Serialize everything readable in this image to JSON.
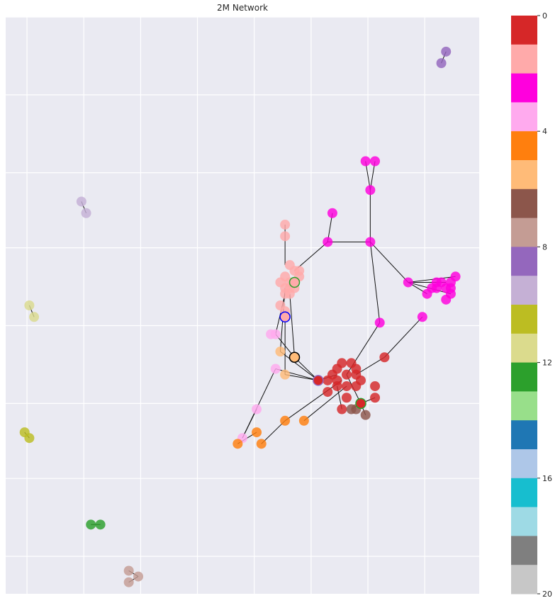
{
  "chart_data": {
    "type": "scatter",
    "title": "2M Network",
    "grid": true,
    "colorbar": {
      "position": "right",
      "ticks": [
        "0",
        "4",
        "8",
        "12",
        "16",
        "20"
      ],
      "tick_values": [
        0,
        4,
        8,
        12,
        16,
        20
      ],
      "range": [
        0,
        20
      ],
      "colors": [
        "#d62728",
        "#ffaaaa",
        "#ff00dd",
        "#ffaaee",
        "#ff7f0e",
        "#ffbb78",
        "#8c564b",
        "#c49c94",
        "#9467bd",
        "#c5b0d5",
        "#bcbd22",
        "#dbdb8d",
        "#2ca02c",
        "#98df8a",
        "#1f77b4",
        "#aec7e8",
        "#17becf",
        "#9edae5",
        "#7f7f7f",
        "#c7c7c7"
      ]
    },
    "clusters": [
      {
        "label": 0,
        "color": "#d62728",
        "nodes": [
          [
            0.7,
            0.61
          ],
          [
            0.72,
            0.62
          ],
          [
            0.74,
            0.62
          ],
          [
            0.7,
            0.63
          ],
          [
            0.72,
            0.64
          ],
          [
            0.74,
            0.64
          ],
          [
            0.71,
            0.6
          ],
          [
            0.73,
            0.6
          ],
          [
            0.69,
            0.62
          ],
          [
            0.75,
            0.63
          ],
          [
            0.72,
            0.66
          ],
          [
            0.7,
            0.64
          ],
          [
            0.68,
            0.63
          ],
          [
            0.66,
            0.63
          ],
          [
            0.78,
            0.66
          ],
          [
            0.8,
            0.59
          ],
          [
            0.78,
            0.64
          ],
          [
            0.71,
            0.68
          ],
          [
            0.68,
            0.65
          ],
          [
            0.74,
            0.61
          ]
        ]
      },
      {
        "label": 1,
        "color": "#ffaaaa",
        "nodes": [
          [
            0.59,
            0.36
          ],
          [
            0.59,
            0.38
          ],
          [
            0.6,
            0.43
          ],
          [
            0.61,
            0.44
          ],
          [
            0.59,
            0.45
          ],
          [
            0.61,
            0.46
          ],
          [
            0.62,
            0.45
          ],
          [
            0.6,
            0.46
          ],
          [
            0.58,
            0.46
          ],
          [
            0.59,
            0.47
          ],
          [
            0.6,
            0.47
          ],
          [
            0.61,
            0.47
          ],
          [
            0.62,
            0.44
          ],
          [
            0.6,
            0.48
          ],
          [
            0.59,
            0.48
          ],
          [
            0.58,
            0.5
          ],
          [
            0.59,
            0.51
          ]
        ]
      },
      {
        "label": 2,
        "color": "#ff00dd",
        "nodes": [
          [
            0.76,
            0.25
          ],
          [
            0.78,
            0.25
          ],
          [
            0.77,
            0.3
          ],
          [
            0.69,
            0.34
          ],
          [
            0.68,
            0.39
          ],
          [
            0.77,
            0.39
          ],
          [
            0.85,
            0.46
          ],
          [
            0.79,
            0.53
          ],
          [
            0.89,
            0.48
          ],
          [
            0.91,
            0.46
          ],
          [
            0.92,
            0.46
          ],
          [
            0.93,
            0.47
          ],
          [
            0.94,
            0.46
          ],
          [
            0.95,
            0.45
          ],
          [
            0.94,
            0.47
          ],
          [
            0.91,
            0.47
          ],
          [
            0.9,
            0.47
          ],
          [
            0.93,
            0.49
          ],
          [
            0.94,
            0.48
          ],
          [
            0.88,
            0.52
          ]
        ]
      },
      {
        "label": 3,
        "color": "#ffaaee",
        "nodes": [
          [
            0.56,
            0.55
          ],
          [
            0.57,
            0.55
          ],
          [
            0.57,
            0.61
          ],
          [
            0.53,
            0.68
          ],
          [
            0.5,
            0.73
          ]
        ]
      },
      {
        "label": 4,
        "color": "#ff7f0e",
        "nodes": [
          [
            0.59,
            0.7
          ],
          [
            0.63,
            0.7
          ],
          [
            0.53,
            0.72
          ],
          [
            0.54,
            0.74
          ],
          [
            0.49,
            0.74
          ]
        ]
      },
      {
        "label": 5,
        "color": "#ffbb78",
        "nodes": [
          [
            0.61,
            0.59
          ],
          [
            0.58,
            0.58
          ],
          [
            0.59,
            0.62
          ]
        ]
      },
      {
        "label": 6,
        "color": "#8c564b",
        "nodes": [
          [
            0.73,
            0.68
          ],
          [
            0.74,
            0.68
          ],
          [
            0.76,
            0.69
          ]
        ]
      },
      {
        "label": 7,
        "color": "#c49c94",
        "nodes": [
          [
            0.26,
            0.96
          ],
          [
            0.28,
            0.97
          ],
          [
            0.26,
            0.98
          ]
        ]
      },
      {
        "label": 8,
        "color": "#9467bd",
        "nodes": [
          [
            0.93,
            0.06
          ],
          [
            0.92,
            0.08
          ]
        ]
      },
      {
        "label": 9,
        "color": "#c5b0d5",
        "nodes": [
          [
            0.16,
            0.32
          ],
          [
            0.17,
            0.34
          ]
        ]
      },
      {
        "label": 10,
        "color": "#bcbd22",
        "nodes": [
          [
            0.04,
            0.72
          ],
          [
            0.05,
            0.73
          ]
        ]
      },
      {
        "label": 11,
        "color": "#dbdb8d",
        "nodes": [
          [
            0.05,
            0.5
          ],
          [
            0.06,
            0.52
          ]
        ]
      },
      {
        "label": 12,
        "color": "#2ca02c",
        "nodes": [
          [
            0.18,
            0.88
          ],
          [
            0.2,
            0.88
          ]
        ]
      }
    ],
    "highlighted_nodes": [
      {
        "cluster": 1,
        "edge_color": "#2ca02c",
        "position": [
          0.61,
          0.46
        ]
      },
      {
        "cluster": 1,
        "edge_color": "#0000ff",
        "position": [
          0.59,
          0.52
        ]
      },
      {
        "cluster": 5,
        "edge_color": "#000000",
        "position": [
          0.61,
          0.59
        ]
      },
      {
        "cluster": 0,
        "edge_color": "#9467bd",
        "position": [
          0.66,
          0.63
        ]
      },
      {
        "cluster": 0,
        "edge_color": "#2ca02c",
        "position": [
          0.75,
          0.67
        ]
      }
    ],
    "edges": [
      [
        [
          0.76,
          0.25
        ],
        [
          0.77,
          0.3
        ]
      ],
      [
        [
          0.78,
          0.25
        ],
        [
          0.77,
          0.3
        ]
      ],
      [
        [
          0.77,
          0.3
        ],
        [
          0.77,
          0.39
        ]
      ],
      [
        [
          0.69,
          0.34
        ],
        [
          0.68,
          0.39
        ]
      ],
      [
        [
          0.68,
          0.39
        ],
        [
          0.77,
          0.39
        ]
      ],
      [
        [
          0.68,
          0.39
        ],
        [
          0.61,
          0.44
        ]
      ],
      [
        [
          0.77,
          0.39
        ],
        [
          0.85,
          0.46
        ]
      ],
      [
        [
          0.85,
          0.46
        ],
        [
          0.89,
          0.48
        ]
      ],
      [
        [
          0.85,
          0.46
        ],
        [
          0.93,
          0.46
        ]
      ],
      [
        [
          0.85,
          0.46
        ],
        [
          0.95,
          0.45
        ]
      ],
      [
        [
          0.85,
          0.46
        ],
        [
          0.94,
          0.48
        ]
      ],
      [
        [
          0.77,
          0.39
        ],
        [
          0.79,
          0.53
        ]
      ],
      [
        [
          0.79,
          0.53
        ],
        [
          0.72,
          0.62
        ]
      ],
      [
        [
          0.88,
          0.52
        ],
        [
          0.8,
          0.59
        ]
      ],
      [
        [
          0.8,
          0.59
        ],
        [
          0.74,
          0.62
        ]
      ],
      [
        [
          0.59,
          0.36
        ],
        [
          0.59,
          0.43
        ]
      ],
      [
        [
          0.59,
          0.48
        ],
        [
          0.57,
          0.55
        ]
      ],
      [
        [
          0.6,
          0.48
        ],
        [
          0.61,
          0.59
        ]
      ],
      [
        [
          0.59,
          0.47
        ],
        [
          0.58,
          0.58
        ]
      ],
      [
        [
          0.59,
          0.51
        ],
        [
          0.59,
          0.62
        ]
      ],
      [
        [
          0.57,
          0.55
        ],
        [
          0.61,
          0.59
        ]
      ],
      [
        [
          0.61,
          0.59
        ],
        [
          0.66,
          0.63
        ]
      ],
      [
        [
          0.58,
          0.58
        ],
        [
          0.66,
          0.63
        ]
      ],
      [
        [
          0.57,
          0.61
        ],
        [
          0.66,
          0.63
        ]
      ],
      [
        [
          0.59,
          0.62
        ],
        [
          0.66,
          0.63
        ]
      ],
      [
        [
          0.66,
          0.63
        ],
        [
          0.7,
          0.62
        ]
      ],
      [
        [
          0.57,
          0.61
        ],
        [
          0.5,
          0.73
        ]
      ],
      [
        [
          0.5,
          0.73
        ],
        [
          0.53,
          0.68
        ]
      ],
      [
        [
          0.59,
          0.7
        ],
        [
          0.71,
          0.63
        ]
      ],
      [
        [
          0.63,
          0.7
        ],
        [
          0.72,
          0.64
        ]
      ],
      [
        [
          0.53,
          0.72
        ],
        [
          0.49,
          0.74
        ]
      ],
      [
        [
          0.54,
          0.74
        ],
        [
          0.59,
          0.7
        ]
      ],
      [
        [
          0.72,
          0.62
        ],
        [
          0.75,
          0.67
        ]
      ],
      [
        [
          0.75,
          0.67
        ],
        [
          0.73,
          0.68
        ]
      ],
      [
        [
          0.75,
          0.67
        ],
        [
          0.76,
          0.69
        ]
      ],
      [
        [
          0.75,
          0.67
        ],
        [
          0.78,
          0.66
        ]
      ],
      [
        [
          0.7,
          0.64
        ],
        [
          0.71,
          0.68
        ]
      ],
      [
        [
          0.93,
          0.06
        ],
        [
          0.92,
          0.08
        ]
      ],
      [
        [
          0.16,
          0.32
        ],
        [
          0.17,
          0.34
        ]
      ],
      [
        [
          0.04,
          0.72
        ],
        [
          0.05,
          0.73
        ]
      ],
      [
        [
          0.05,
          0.5
        ],
        [
          0.06,
          0.52
        ]
      ],
      [
        [
          0.18,
          0.88
        ],
        [
          0.2,
          0.88
        ]
      ],
      [
        [
          0.26,
          0.96
        ],
        [
          0.28,
          0.97
        ]
      ],
      [
        [
          0.28,
          0.97
        ],
        [
          0.26,
          0.98
        ]
      ]
    ]
  }
}
